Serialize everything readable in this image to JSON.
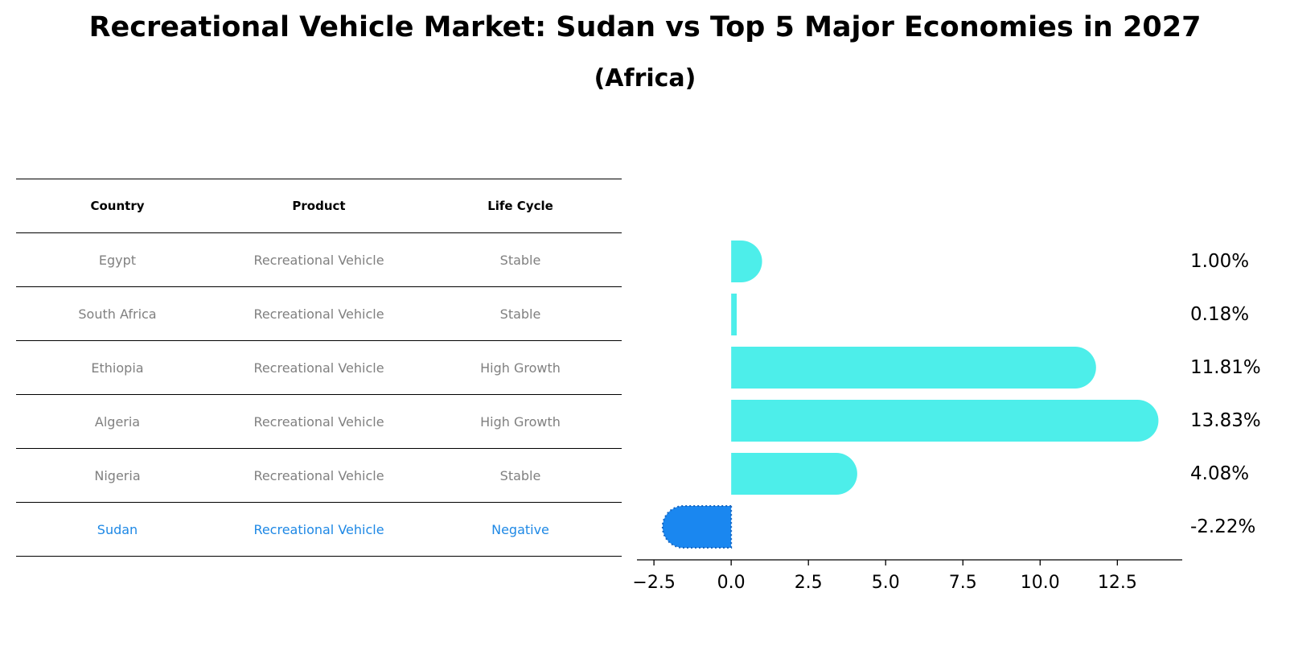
{
  "title": "Recreational Vehicle Market: Sudan vs Top 5 Major Economies in 2027",
  "subtitle": "(Africa)",
  "table": {
    "headers": [
      "Country",
      "Product",
      "Life Cycle"
    ],
    "rows": [
      {
        "country": "Egypt",
        "product": "Recreational Vehicle",
        "life_cycle": "Stable"
      },
      {
        "country": "South Africa",
        "product": "Recreational Vehicle",
        "life_cycle": "Stable"
      },
      {
        "country": "Ethiopia",
        "product": "Recreational Vehicle",
        "life_cycle": "High Growth"
      },
      {
        "country": "Algeria",
        "product": "Recreational Vehicle",
        "life_cycle": "High Growth"
      },
      {
        "country": "Nigeria",
        "product": "Recreational Vehicle",
        "life_cycle": "Stable"
      },
      {
        "country": "Sudan",
        "product": "Recreational Vehicle",
        "life_cycle": "Negative"
      }
    ]
  },
  "colors": {
    "bar": "#4deeea",
    "highlight_bar": "#1a87f0",
    "highlight_text": "#1e88e5",
    "table_text": "#808080"
  },
  "chart_data": {
    "type": "bar",
    "orientation": "horizontal",
    "categories": [
      "Egypt",
      "South Africa",
      "Ethiopia",
      "Algeria",
      "Nigeria",
      "Sudan"
    ],
    "values": [
      1.0,
      0.18,
      11.81,
      13.83,
      4.08,
      -2.22
    ],
    "value_labels": [
      "1.00%",
      "0.18%",
      "11.81%",
      "13.83%",
      "4.08%",
      "-2.22%"
    ],
    "highlight": "Sudan",
    "xlim": [
      -3.05,
      14.6
    ],
    "xticks": [
      -2.5,
      0.0,
      2.5,
      5.0,
      7.5,
      10.0,
      12.5
    ],
    "xtick_labels": [
      "−2.5",
      "0.0",
      "2.5",
      "5.0",
      "7.5",
      "10.0",
      "12.5"
    ],
    "grid": false,
    "legend": "none"
  }
}
